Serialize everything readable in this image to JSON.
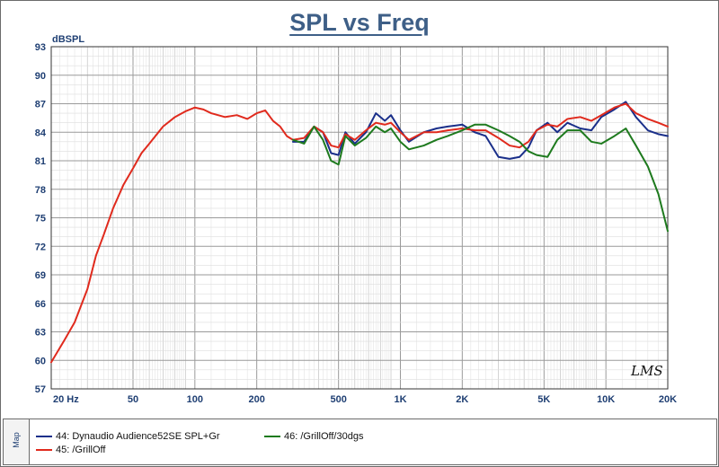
{
  "chart_data": {
    "type": "line",
    "title": "SPL vs Freq",
    "ylabel": "dBSPL",
    "xlabel": "",
    "x_scale": "log",
    "xlim": [
      20,
      20000
    ],
    "ylim": [
      57,
      93
    ],
    "grid": true,
    "x_tick_labels": [
      "20  Hz",
      "50",
      "100",
      "200",
      "500",
      "1K",
      "2K",
      "5K",
      "10K",
      "20K"
    ],
    "x_tick_values": [
      20,
      50,
      100,
      200,
      500,
      1000,
      2000,
      5000,
      10000,
      20000
    ],
    "y_ticks": [
      57,
      60,
      63,
      66,
      69,
      72,
      75,
      78,
      81,
      84,
      87,
      90,
      93
    ],
    "legend_placement": "bottom",
    "series": [
      {
        "name": "44: Dynaudio Audience52SE SPL+Gr",
        "color": "#1a2f8a",
        "points": [
          [
            300,
            83.0
          ],
          [
            340,
            83.0
          ],
          [
            380,
            84.6
          ],
          [
            420,
            84.0
          ],
          [
            460,
            81.8
          ],
          [
            500,
            81.6
          ],
          [
            540,
            84.0
          ],
          [
            600,
            82.8
          ],
          [
            680,
            84.0
          ],
          [
            760,
            86.0
          ],
          [
            840,
            85.2
          ],
          [
            900,
            85.8
          ],
          [
            1000,
            84.2
          ],
          [
            1100,
            83.0
          ],
          [
            1300,
            84.0
          ],
          [
            1500,
            84.4
          ],
          [
            1700,
            84.6
          ],
          [
            2000,
            84.8
          ],
          [
            2300,
            84.0
          ],
          [
            2600,
            83.6
          ],
          [
            3000,
            81.4
          ],
          [
            3400,
            81.2
          ],
          [
            3800,
            81.4
          ],
          [
            4200,
            82.4
          ],
          [
            4600,
            84.2
          ],
          [
            5200,
            85.0
          ],
          [
            5800,
            84.0
          ],
          [
            6500,
            85.0
          ],
          [
            7500,
            84.4
          ],
          [
            8500,
            84.2
          ],
          [
            9500,
            85.6
          ],
          [
            11000,
            86.4
          ],
          [
            12500,
            87.2
          ],
          [
            14000,
            85.6
          ],
          [
            16000,
            84.2
          ],
          [
            18000,
            83.8
          ],
          [
            20000,
            83.6
          ]
        ]
      },
      {
        "name": "45: /GrillOff",
        "color": "#e02a1d",
        "points": [
          [
            20,
            59.8
          ],
          [
            23,
            62.0
          ],
          [
            26,
            64.0
          ],
          [
            30,
            67.5
          ],
          [
            33,
            71.0
          ],
          [
            36,
            73.2
          ],
          [
            40,
            76.0
          ],
          [
            45,
            78.5
          ],
          [
            50,
            80.2
          ],
          [
            55,
            81.8
          ],
          [
            60,
            82.8
          ],
          [
            70,
            84.6
          ],
          [
            80,
            85.6
          ],
          [
            90,
            86.2
          ],
          [
            100,
            86.6
          ],
          [
            110,
            86.4
          ],
          [
            120,
            86.0
          ],
          [
            140,
            85.6
          ],
          [
            160,
            85.8
          ],
          [
            180,
            85.4
          ],
          [
            200,
            86.0
          ],
          [
            220,
            86.3
          ],
          [
            240,
            85.2
          ],
          [
            260,
            84.6
          ],
          [
            280,
            83.6
          ],
          [
            300,
            83.2
          ],
          [
            340,
            83.4
          ],
          [
            380,
            84.6
          ],
          [
            420,
            84.0
          ],
          [
            460,
            82.6
          ],
          [
            500,
            82.4
          ],
          [
            540,
            83.8
          ],
          [
            600,
            83.2
          ],
          [
            680,
            84.2
          ],
          [
            760,
            85.0
          ],
          [
            840,
            84.8
          ],
          [
            900,
            85.0
          ],
          [
            1000,
            84.0
          ],
          [
            1100,
            83.2
          ],
          [
            1300,
            84.0
          ],
          [
            1500,
            84.0
          ],
          [
            1700,
            84.2
          ],
          [
            2000,
            84.4
          ],
          [
            2300,
            84.2
          ],
          [
            2600,
            84.2
          ],
          [
            3000,
            83.4
          ],
          [
            3400,
            82.6
          ],
          [
            3800,
            82.4
          ],
          [
            4200,
            83.0
          ],
          [
            4600,
            84.2
          ],
          [
            5200,
            84.8
          ],
          [
            5800,
            84.6
          ],
          [
            6500,
            85.4
          ],
          [
            7500,
            85.6
          ],
          [
            8500,
            85.2
          ],
          [
            9500,
            85.8
          ],
          [
            11000,
            86.6
          ],
          [
            12500,
            87.0
          ],
          [
            14000,
            86.0
          ],
          [
            16000,
            85.4
          ],
          [
            18000,
            85.0
          ],
          [
            20000,
            84.6
          ]
        ]
      },
      {
        "name": "46: /GrillOff/30dgs",
        "color": "#1e7a1e",
        "points": [
          [
            300,
            83.2
          ],
          [
            340,
            82.8
          ],
          [
            380,
            84.6
          ],
          [
            420,
            83.2
          ],
          [
            460,
            81.0
          ],
          [
            500,
            80.6
          ],
          [
            540,
            83.6
          ],
          [
            600,
            82.6
          ],
          [
            680,
            83.4
          ],
          [
            760,
            84.6
          ],
          [
            840,
            84.0
          ],
          [
            900,
            84.4
          ],
          [
            1000,
            83.0
          ],
          [
            1100,
            82.2
          ],
          [
            1300,
            82.6
          ],
          [
            1500,
            83.2
          ],
          [
            1700,
            83.6
          ],
          [
            2000,
            84.2
          ],
          [
            2300,
            84.8
          ],
          [
            2600,
            84.8
          ],
          [
            3000,
            84.2
          ],
          [
            3400,
            83.6
          ],
          [
            3800,
            83.0
          ],
          [
            4200,
            82.0
          ],
          [
            4600,
            81.6
          ],
          [
            5200,
            81.4
          ],
          [
            5800,
            83.2
          ],
          [
            6500,
            84.2
          ],
          [
            7500,
            84.2
          ],
          [
            8500,
            83.0
          ],
          [
            9500,
            82.8
          ],
          [
            11000,
            83.6
          ],
          [
            12500,
            84.4
          ],
          [
            14000,
            82.6
          ],
          [
            16000,
            80.4
          ],
          [
            18000,
            77.5
          ],
          [
            20000,
            73.6
          ]
        ]
      }
    ]
  },
  "watermark": "LMS",
  "legend_tab_label": "Map"
}
